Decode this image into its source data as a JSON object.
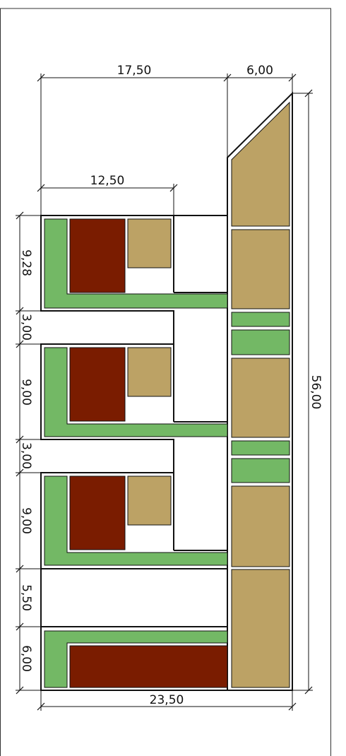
{
  "colors": {
    "green": "#73b865",
    "tan": "#bca265",
    "brick": "#7a1c00",
    "outline": "#111111",
    "frame": "#333333"
  },
  "dimensions": {
    "top_total": "17,50",
    "top_right": "6,00",
    "inner_width": "12,50",
    "overall_height": "56,00",
    "bottom_width": "23,50",
    "left": [
      "9,28",
      "3,00",
      "9,00",
      "3,00",
      "9,00",
      "5,50",
      "6,00"
    ]
  }
}
